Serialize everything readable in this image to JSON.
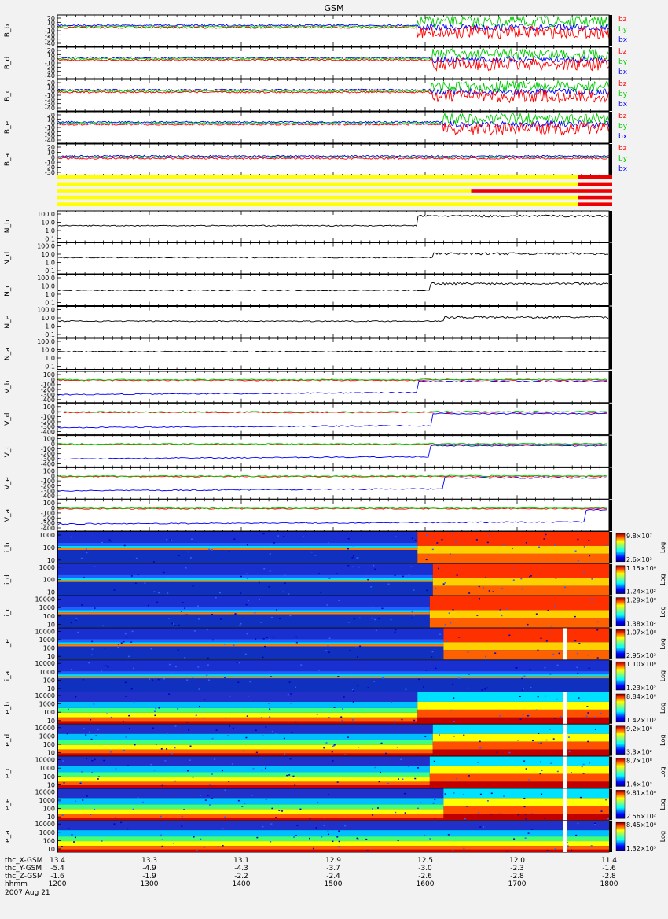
{
  "chart_data": {
    "type": "line",
    "title": "GSM",
    "date": "2007 Aug 21",
    "x_axis": {
      "label": "hhmm",
      "range": [
        1200,
        1800
      ],
      "ticks": [
        "1200",
        "1300",
        "1400",
        "1500",
        "1600",
        "1700",
        "1800"
      ]
    },
    "ephemeris": [
      {
        "label": "thc_X-GSM",
        "values": [
          "13.4",
          "13.3",
          "13.1",
          "12.9",
          "12.5",
          "12.0",
          "11.4"
        ]
      },
      {
        "label": "thc_Y-GSM",
        "values": [
          "-5.4",
          "-4.9",
          "-4.3",
          "-3.7",
          "-3.0",
          "-2.3",
          "-1.6"
        ]
      },
      {
        "label": "thc_Z-GSM",
        "values": [
          "-1.6",
          "-1.9",
          "-2.2",
          "-2.4",
          "-2.6",
          "-2.8",
          "-2.8"
        ]
      }
    ],
    "mag_panels": [
      {
        "ylabel": "B_b",
        "ticks": [
          "20",
          "10",
          "0",
          "-10",
          "-20",
          "-30",
          "-40"
        ],
        "legend": [
          "bz",
          "by",
          "bx"
        ],
        "disturb_start": 1555
      },
      {
        "ylabel": "B_d",
        "ticks": [
          "20",
          "10",
          "0",
          "-10",
          "-20",
          "-30",
          "-40"
        ],
        "legend": [
          "bz",
          "by",
          "bx"
        ],
        "disturb_start": 1605
      },
      {
        "ylabel": "B_c",
        "ticks": [
          "20",
          "10",
          "0",
          "-10",
          "-20",
          "-30",
          "-40"
        ],
        "legend": [
          "bz",
          "by",
          "bx"
        ],
        "disturb_start": 1603
      },
      {
        "ylabel": "B_e",
        "ticks": [
          "20",
          "10",
          "0",
          "-10",
          "-20",
          "-30",
          "-40"
        ],
        "legend": [
          "bz",
          "by",
          "bx"
        ],
        "disturb_start": 1612
      },
      {
        "ylabel": "B_a",
        "ticks": [
          "20",
          "10",
          "0",
          "-10",
          "-20",
          "-30"
        ],
        "legend": [
          "bz",
          "by",
          "bx"
        ],
        "disturb_start": 1800
      }
    ],
    "legend_colors": {
      "bz": "#ff0000",
      "by": "#00cc00",
      "bx": "#0000ff"
    },
    "mode_bars": {
      "colors": {
        "yellow": "#ffff00",
        "red": "#ee0000"
      },
      "rows": [
        {
          "red_from": 1740
        },
        {
          "red_from": 1740
        },
        {
          "red_from": 1630
        },
        {
          "red_from": 1740
        },
        {
          "red_from": 1740
        }
      ]
    },
    "density_panels": [
      {
        "ylabel": "N_b",
        "ticks": [
          "100.0",
          "10.0",
          "1.0",
          "0.1"
        ],
        "level": 4,
        "jump_start": 1555,
        "jump_level": 60
      },
      {
        "ylabel": "N_d",
        "ticks": [
          "100.0",
          "10.0",
          "1.0",
          "0.1"
        ],
        "level": 4,
        "jump_start": 1605,
        "jump_level": 12
      },
      {
        "ylabel": "N_c",
        "ticks": [
          "100.0",
          "10.0",
          "1.0",
          "0.1"
        ],
        "level": 3,
        "jump_start": 1603,
        "jump_level": 20
      },
      {
        "ylabel": "N_e",
        "ticks": [
          "100.0",
          "10.0",
          "1.0",
          "0.1"
        ],
        "level": 4,
        "jump_start": 1612,
        "jump_level": 12
      },
      {
        "ylabel": "N_a",
        "ticks": [
          "100.0",
          "10.0",
          "1.0",
          "0.1"
        ],
        "level": 6,
        "jump_start": 1800,
        "jump_level": 6
      }
    ],
    "velocity_panels": [
      {
        "ylabel": "V_b",
        "ticks": [
          "100",
          "0",
          "-100",
          "-200",
          "-300",
          "-400"
        ],
        "vx_start": -300,
        "change": 1555
      },
      {
        "ylabel": "V_d",
        "ticks": [
          "100",
          "0",
          "-100",
          "-200",
          "-300",
          "-400"
        ],
        "vx_start": -320,
        "change": 1605
      },
      {
        "ylabel": "V_c",
        "ticks": [
          "100",
          "0",
          "-100",
          "-200",
          "-300",
          "-400"
        ],
        "vx_start": -300,
        "change": 1603
      },
      {
        "ylabel": "V_e",
        "ticks": [
          "100",
          "0",
          "-100",
          "-200",
          "-300",
          "-400"
        ],
        "vx_start": -300,
        "change": 1612
      },
      {
        "ylabel": "V_a",
        "ticks": [
          "100",
          "0",
          "-100",
          "-200",
          "-300",
          "-400"
        ],
        "vx_start": -320,
        "change": 1745
      }
    ],
    "spectrogram_panels": [
      {
        "ylabel": "i_b",
        "ticks": [
          "1000",
          "100",
          "10"
        ],
        "cmax": "9.8×10⁷",
        "cmin": "2.6×10²",
        "change": 1555,
        "kind": "ion"
      },
      {
        "ylabel": "i_d",
        "ticks": [
          "1000",
          "100",
          "10"
        ],
        "cmax": "1.15×10⁸",
        "cmin": "1.24×10²",
        "change": 1605,
        "kind": "ion"
      },
      {
        "ylabel": "i_c",
        "ticks": [
          "10000",
          "1000",
          "100",
          "10"
        ],
        "cmax": "1.29×10⁸",
        "cmin": "1.38×10²",
        "change": 1603,
        "kind": "ion"
      },
      {
        "ylabel": "i_e",
        "ticks": [
          "10000",
          "1000",
          "100",
          "10"
        ],
        "cmax": "1.07×10⁸",
        "cmin": "2.95×10²",
        "change": 1612,
        "kind": "ion"
      },
      {
        "ylabel": "i_a",
        "ticks": [
          "10000",
          "1000",
          "100",
          "10"
        ],
        "cmax": "1.10×10⁸",
        "cmin": "1.23×10²",
        "change": 1800,
        "kind": "ion"
      },
      {
        "ylabel": "e_b",
        "ticks": [
          "10000",
          "1000",
          "100",
          "10"
        ],
        "cmax": "8.84×10⁸",
        "cmin": "1.42×10³",
        "change": 1555,
        "kind": "electron"
      },
      {
        "ylabel": "e_d",
        "ticks": [
          "10000",
          "1000",
          "100",
          "10"
        ],
        "cmax": "9.2×10⁸",
        "cmin": "3.3×10²",
        "change": 1605,
        "kind": "electron"
      },
      {
        "ylabel": "e_c",
        "ticks": [
          "10000",
          "1000",
          "100",
          "10"
        ],
        "cmax": "8.7×10⁸",
        "cmin": "1.4×10³",
        "change": 1603,
        "kind": "electron"
      },
      {
        "ylabel": "e_e",
        "ticks": [
          "10000",
          "1000",
          "100",
          "10"
        ],
        "cmax": "9.81×10⁸",
        "cmin": "2.56×10²",
        "change": 1612,
        "kind": "electron"
      },
      {
        "ylabel": "e_a",
        "ticks": [
          "10000",
          "1000",
          "100",
          "10"
        ],
        "cmax": "8.45×10⁸",
        "cmin": "1.32×10³",
        "change": 1800,
        "kind": "electron"
      }
    ],
    "colorbar_label": "Log"
  }
}
